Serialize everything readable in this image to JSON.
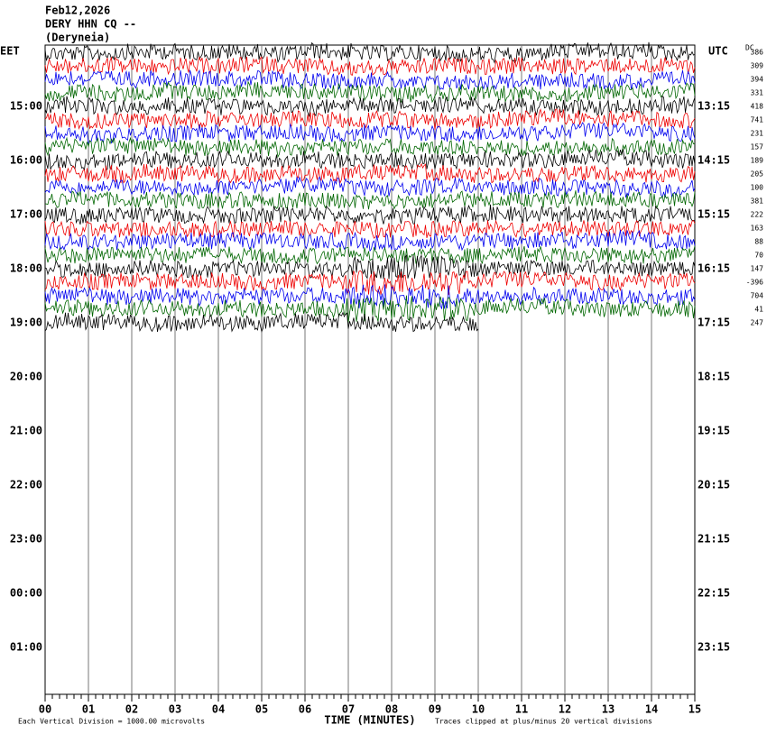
{
  "header": {
    "date": "Feb12,2026",
    "station": "DERY HHN CQ --",
    "place": "(Deryneia)"
  },
  "left_axis": {
    "title": "EET",
    "labels": [
      "15:00",
      "16:00",
      "17:00",
      "18:00",
      "19:00",
      "20:00",
      "21:00",
      "22:00",
      "23:00",
      "00:00",
      "01:00"
    ]
  },
  "right_axis": {
    "title": "UTC",
    "labels": [
      "13:15",
      "14:15",
      "15:15",
      "16:15",
      "17:15",
      "18:15",
      "19:15",
      "20:15",
      "21:15",
      "22:15",
      "23:15"
    ]
  },
  "dc": {
    "title": "DC",
    "values": [
      "386",
      "309",
      "394",
      "331",
      "418",
      "741",
      "231",
      "157",
      "189",
      "205",
      "100",
      "381",
      "222",
      "163",
      "88",
      "70",
      "147",
      "-396",
      "704",
      "41",
      "247"
    ]
  },
  "x_axis": {
    "title": "TIME (MINUTES)",
    "labels": [
      "00",
      "01",
      "02",
      "03",
      "04",
      "05",
      "06",
      "07",
      "08",
      "09",
      "10",
      "11",
      "12",
      "13",
      "14",
      "15"
    ]
  },
  "footer": {
    "scale": "Each Vertical Division = 1000.00 microvolts",
    "clip": "Traces clipped at plus/minus 20 vertical divisions"
  }
}
